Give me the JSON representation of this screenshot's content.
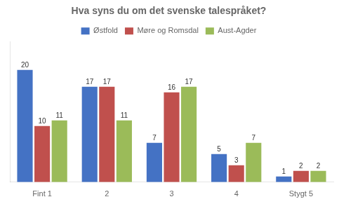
{
  "chart_data": {
    "type": "bar",
    "title": "Hva syns du om det svenske talespråket?",
    "categories": [
      "Fint 1",
      "2",
      "3",
      "4",
      "Stygt 5"
    ],
    "series": [
      {
        "name": "Østfold",
        "color": "#4472C4",
        "values": [
          20,
          17,
          7,
          5,
          1
        ]
      },
      {
        "name": "Møre og Romsdal",
        "color": "#C0504D",
        "values": [
          10,
          17,
          16,
          3,
          2
        ]
      },
      {
        "name": "Aust-Agder",
        "color": "#9BBB59",
        "values": [
          11,
          11,
          17,
          7,
          2
        ]
      }
    ],
    "ylim": [
      0,
      25
    ],
    "grid": false,
    "legend": "top",
    "data_labels": true,
    "tick_labels": "x"
  }
}
